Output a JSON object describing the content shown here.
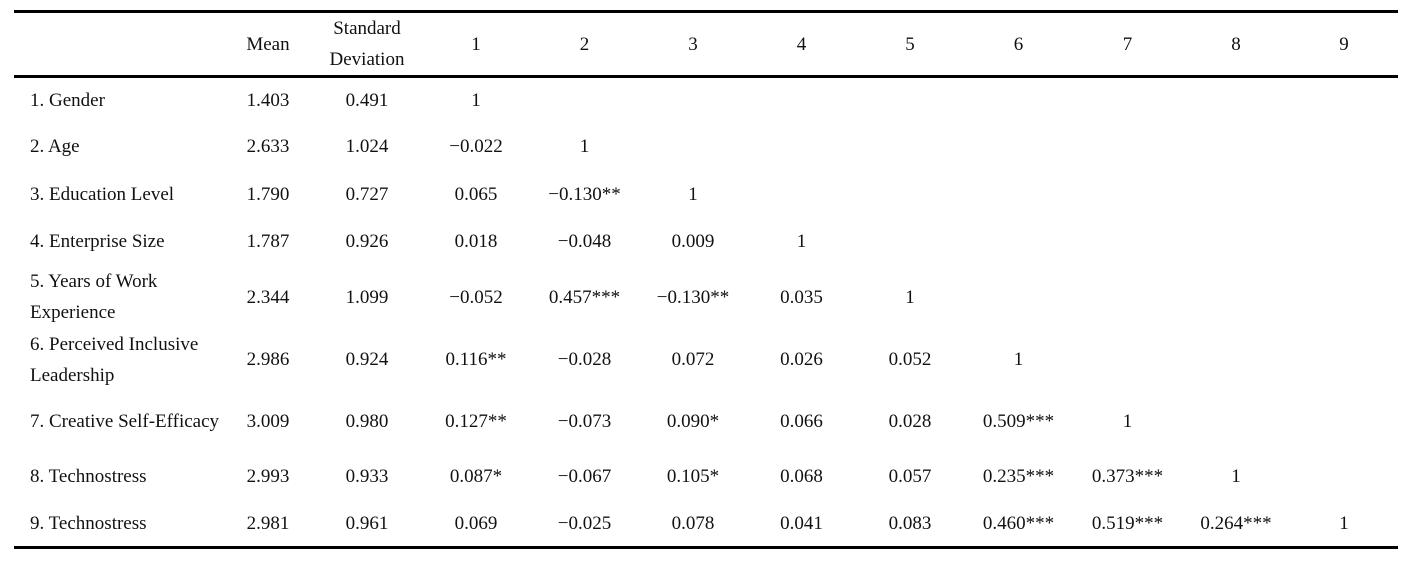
{
  "table": {
    "headers": {
      "label": "",
      "mean": "Mean",
      "sd_line1": "Standard",
      "sd_line2": "Deviation",
      "cols": [
        "1",
        "2",
        "3",
        "4",
        "5",
        "6",
        "7",
        "8",
        "9"
      ]
    },
    "rows": [
      {
        "label": "1. Gender",
        "mean": "1.403",
        "sd": "0.491",
        "cells": [
          "1",
          "",
          "",
          "",
          "",
          "",
          "",
          "",
          ""
        ]
      },
      {
        "label": "2. Age",
        "mean": "2.633",
        "sd": "1.024",
        "cells": [
          "−0.022",
          "1",
          "",
          "",
          "",
          "",
          "",
          "",
          ""
        ]
      },
      {
        "label": "3. Education Level",
        "mean": "1.790",
        "sd": "0.727",
        "cells": [
          "0.065",
          "−0.130**",
          "1",
          "",
          "",
          "",
          "",
          "",
          ""
        ]
      },
      {
        "label": "4. Enterprise Size",
        "mean": "1.787",
        "sd": "0.926",
        "cells": [
          "0.018",
          "−0.048",
          "0.009",
          "1",
          "",
          "",
          "",
          "",
          ""
        ]
      },
      {
        "label": "5. Years of Work Experience",
        "mean": "2.344",
        "sd": "1.099",
        "cells": [
          "−0.052",
          "0.457***",
          "−0.130**",
          "0.035",
          "1",
          "",
          "",
          "",
          ""
        ]
      },
      {
        "label": "6. Perceived Inclusive Leadership",
        "mean": "2.986",
        "sd": "0.924",
        "cells": [
          "0.116**",
          "−0.028",
          "0.072",
          "0.026",
          "0.052",
          "1",
          "",
          "",
          ""
        ]
      },
      {
        "label": "7. Creative Self-Efficacy",
        "mean": "3.009",
        "sd": "0.980",
        "cells": [
          "0.127**",
          "−0.073",
          "0.090*",
          "0.066",
          "0.028",
          "0.509***",
          "1",
          "",
          ""
        ]
      },
      {
        "label": "8. Technostress",
        "mean": "2.993",
        "sd": "0.933",
        "cells": [
          "0.087*",
          "−0.067",
          "0.105*",
          "0.068",
          "0.057",
          "0.235***",
          "0.373***",
          "1",
          ""
        ]
      },
      {
        "label": "9. Technostress",
        "mean": "2.981",
        "sd": "0.961",
        "cells": [
          "0.069",
          "−0.025",
          "0.078",
          "0.041",
          "0.083",
          "0.460***",
          "0.519***",
          "0.264***",
          "1"
        ]
      }
    ]
  }
}
